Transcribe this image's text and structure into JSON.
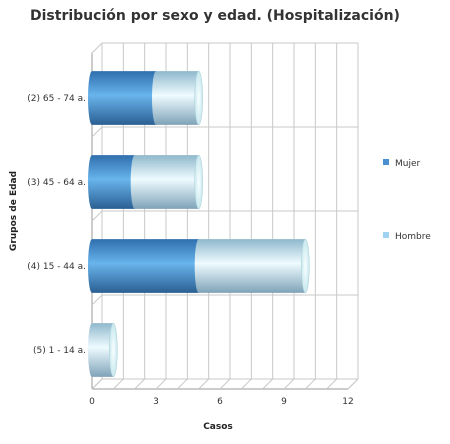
{
  "chart_data": {
    "type": "bar",
    "orientation": "horizontal",
    "stacked": true,
    "three_d": true,
    "title": "Distribución por sexo y edad. (Hospitalización)",
    "xlabel": "Casos",
    "ylabel": "Grupos de Edad",
    "categories": [
      "(2) 65 - 74 a.",
      "(3) 45 - 64 a.",
      "(4) 15 - 44 a.",
      "(5) 1 - 14 a."
    ],
    "series": [
      {
        "name": "Mujer",
        "values": [
          3,
          2,
          5,
          0
        ],
        "color": "#4a8fcf"
      },
      {
        "name": "Hombre",
        "values": [
          2,
          3,
          5,
          1
        ],
        "color": "#9fd1f2"
      }
    ],
    "xlim": [
      0,
      12
    ],
    "xticks": [
      0,
      3,
      6,
      9,
      12
    ],
    "grid": true,
    "legend_position": "right"
  }
}
